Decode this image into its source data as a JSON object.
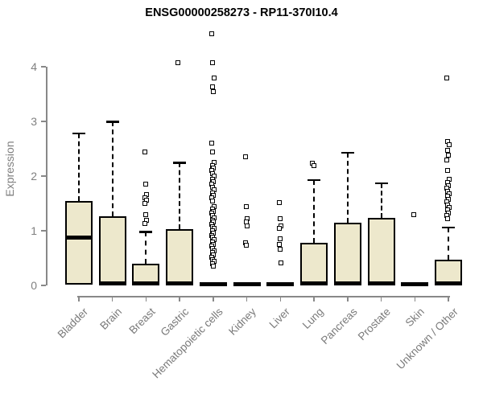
{
  "title": "ENSG00000258273 - RP11-370I10.4",
  "colors": {
    "box_fill": "#EDE8CC",
    "box_border": "#000000",
    "median": "#000000",
    "axis": "#888888",
    "tick_text": "#808080",
    "title_text": "#000000",
    "background": "#ffffff"
  },
  "chart_data": {
    "type": "boxplot",
    "title": "ENSG00000258273 - RP11-370I10.4",
    "xlabel": "",
    "ylabel": "Expression",
    "ylim": [
      0,
      4.6
    ],
    "yticks": [
      0,
      1,
      2,
      3,
      4
    ],
    "grid": false,
    "legend": "none",
    "categories": [
      "Bladder",
      "Brain",
      "Breast",
      "Gastric",
      "Hematopoietic cells",
      "Kidney",
      "Liver",
      "Lung",
      "Pancreas",
      "Prostate",
      "Skin",
      "Unknown / Other"
    ],
    "series": [
      {
        "name": "Bladder",
        "q1": 0.02,
        "median": 0.87,
        "q3": 1.55,
        "whisker_low": 0.02,
        "whisker_high": 2.78,
        "outliers": []
      },
      {
        "name": "Brain",
        "q1": 0.02,
        "median": 0.03,
        "q3": 1.26,
        "whisker_low": 0.02,
        "whisker_high": 3.0,
        "outliers": []
      },
      {
        "name": "Breast",
        "q1": 0.02,
        "median": 0.03,
        "q3": 0.4,
        "whisker_low": 0.02,
        "whisker_high": 0.98,
        "outliers": [
          2.43,
          1.84,
          1.66,
          1.6,
          1.55,
          1.5,
          1.29,
          1.18,
          1.12
        ]
      },
      {
        "name": "Gastric",
        "q1": 0.02,
        "median": 0.03,
        "q3": 1.03,
        "whisker_low": 0.02,
        "whisker_high": 2.25,
        "outliers": [
          4.06
        ]
      },
      {
        "name": "Hematopoietic cells",
        "q1": 0.0,
        "median": 0.02,
        "q3": 0.05,
        "whisker_low": 0.0,
        "whisker_high": 0.05,
        "outliers": [
          4.6,
          4.06,
          3.78,
          3.62,
          3.53,
          2.6,
          2.44,
          2.24,
          2.19,
          2.14,
          2.09,
          2.04,
          1.99,
          1.94,
          1.89,
          1.84,
          1.79,
          1.74,
          1.69,
          1.64,
          1.59,
          1.54,
          1.43,
          1.39,
          1.35,
          1.31,
          1.27,
          1.23,
          1.19,
          1.15,
          1.11,
          1.07,
          1.03,
          0.99,
          0.95,
          0.91,
          0.87,
          0.83,
          0.79,
          0.75,
          0.71,
          0.67,
          0.63,
          0.59,
          0.55,
          0.51,
          0.47,
          0.43,
          0.39,
          0.35
        ]
      },
      {
        "name": "Kidney",
        "q1": 0.0,
        "median": 0.02,
        "q3": 0.04,
        "whisker_low": 0.0,
        "whisker_high": 0.04,
        "outliers": [
          2.35,
          1.43,
          1.22,
          1.15,
          1.08,
          0.77,
          0.73
        ]
      },
      {
        "name": "Liver",
        "q1": 0.0,
        "median": 0.02,
        "q3": 0.04,
        "whisker_low": 0.0,
        "whisker_high": 0.04,
        "outliers": [
          1.51,
          1.21,
          1.08,
          1.04,
          0.85,
          0.75,
          0.66,
          0.41
        ]
      },
      {
        "name": "Lung",
        "q1": 0.02,
        "median": 0.03,
        "q3": 0.78,
        "whisker_low": 0.02,
        "whisker_high": 1.93,
        "outliers": [
          2.23,
          2.19
        ]
      },
      {
        "name": "Pancreas",
        "q1": 0.02,
        "median": 0.03,
        "q3": 1.14,
        "whisker_low": 0.02,
        "whisker_high": 2.43,
        "outliers": []
      },
      {
        "name": "Prostate",
        "q1": 0.02,
        "median": 0.03,
        "q3": 1.23,
        "whisker_low": 0.02,
        "whisker_high": 1.87,
        "outliers": []
      },
      {
        "name": "Skin",
        "q1": 0.0,
        "median": 0.02,
        "q3": 0.04,
        "whisker_low": 0.0,
        "whisker_high": 0.04,
        "outliers": [
          1.28
        ]
      },
      {
        "name": "Unknown / Other",
        "q1": 0.02,
        "median": 0.03,
        "q3": 0.47,
        "whisker_low": 0.02,
        "whisker_high": 1.06,
        "outliers": [
          3.78,
          2.62,
          2.57,
          2.46,
          2.38,
          2.28,
          2.1,
          1.94,
          1.87,
          1.82,
          1.77,
          1.72,
          1.67,
          1.62,
          1.57,
          1.52,
          1.47,
          1.42,
          1.37,
          1.32,
          1.27,
          1.22
        ]
      }
    ]
  }
}
